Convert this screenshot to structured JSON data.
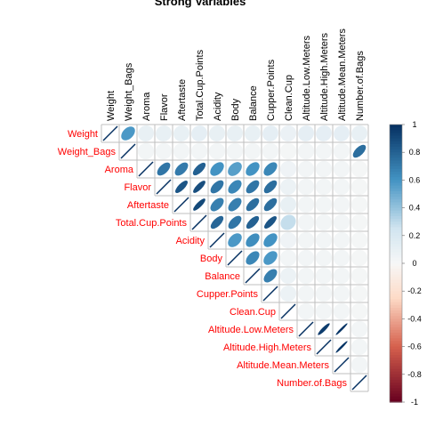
{
  "chart_data": {
    "type": "heatmap",
    "title": "Strong Variables",
    "variables": [
      "Weight",
      "Weight_Bags",
      "Aroma",
      "Flavor",
      "Aftertaste",
      "Total.Cup.Points",
      "Acidity",
      "Body",
      "Balance",
      "Cupper.Points",
      "Clean.Cup",
      "Altitude.Low.Meters",
      "Altitude.High.Meters",
      "Altitude.Mean.Meters",
      "Number.of.Bags"
    ],
    "matrix_shape": "upper-triangle",
    "method": "ellipse",
    "correlations": [
      [
        1.0,
        0.58,
        0.1,
        0.1,
        0.1,
        0.12,
        0.1,
        0.1,
        0.1,
        0.12,
        0.08,
        0.12,
        0.12,
        0.12,
        0.1
      ],
      [
        null,
        1.0,
        0.03,
        0.03,
        0.03,
        0.03,
        0.03,
        0.03,
        0.03,
        0.03,
        0.02,
        0.03,
        0.03,
        0.03,
        0.75
      ],
      [
        null,
        null,
        1.0,
        0.72,
        0.7,
        0.8,
        0.6,
        0.55,
        0.6,
        0.65,
        0.05,
        0.03,
        0.03,
        0.03,
        0.02
      ],
      [
        null,
        null,
        null,
        1.0,
        0.85,
        0.88,
        0.72,
        0.65,
        0.72,
        0.75,
        0.07,
        0.03,
        0.03,
        0.03,
        0.02
      ],
      [
        null,
        null,
        null,
        null,
        1.0,
        0.9,
        0.68,
        0.68,
        0.75,
        0.75,
        0.1,
        0.03,
        0.03,
        0.03,
        0.02
      ],
      [
        null,
        null,
        null,
        null,
        null,
        1.0,
        0.78,
        0.72,
        0.8,
        0.85,
        0.28,
        0.03,
        0.03,
        0.03,
        0.02
      ],
      [
        null,
        null,
        null,
        null,
        null,
        null,
        1.0,
        0.58,
        0.62,
        0.6,
        0.05,
        0.03,
        0.03,
        0.03,
        0.02
      ],
      [
        null,
        null,
        null,
        null,
        null,
        null,
        null,
        1.0,
        0.65,
        0.58,
        0.03,
        0.03,
        0.03,
        0.03,
        0.02
      ],
      [
        null,
        null,
        null,
        null,
        null,
        null,
        null,
        null,
        1.0,
        0.68,
        0.07,
        0.03,
        0.03,
        0.03,
        0.02
      ],
      [
        null,
        null,
        null,
        null,
        null,
        null,
        null,
        null,
        null,
        1.0,
        0.07,
        0.03,
        0.03,
        0.03,
        0.02
      ],
      [
        null,
        null,
        null,
        null,
        null,
        null,
        null,
        null,
        null,
        null,
        1.0,
        0.03,
        0.03,
        0.03,
        0.02
      ],
      [
        null,
        null,
        null,
        null,
        null,
        null,
        null,
        null,
        null,
        null,
        null,
        1.0,
        0.95,
        0.98,
        0.03
      ],
      [
        null,
        null,
        null,
        null,
        null,
        null,
        null,
        null,
        null,
        null,
        null,
        null,
        1.0,
        0.98,
        0.03
      ],
      [
        null,
        null,
        null,
        null,
        null,
        null,
        null,
        null,
        null,
        null,
        null,
        null,
        null,
        1.0,
        0.03
      ],
      [
        null,
        null,
        null,
        null,
        null,
        null,
        null,
        null,
        null,
        null,
        null,
        null,
        null,
        null,
        1.0
      ]
    ],
    "colorbar": {
      "ticks": [
        "1",
        "0.8",
        "0.6",
        "0.4",
        "0.2",
        "0",
        "-0.2",
        "-0.4",
        "-0.6",
        "-0.8",
        "-1"
      ],
      "range": [
        -1,
        1
      ],
      "colors": {
        "neg_dark": "#67001F",
        "neg_mid": "#D6604D",
        "neg_light": "#FDDBC7",
        "zero": "#F7F7F7",
        "pos_light": "#D1E5F0",
        "pos_mid": "#4393C3",
        "pos_dark": "#053061"
      }
    },
    "label_color": "#FF0000",
    "grid_color": "#BFBFBF"
  }
}
